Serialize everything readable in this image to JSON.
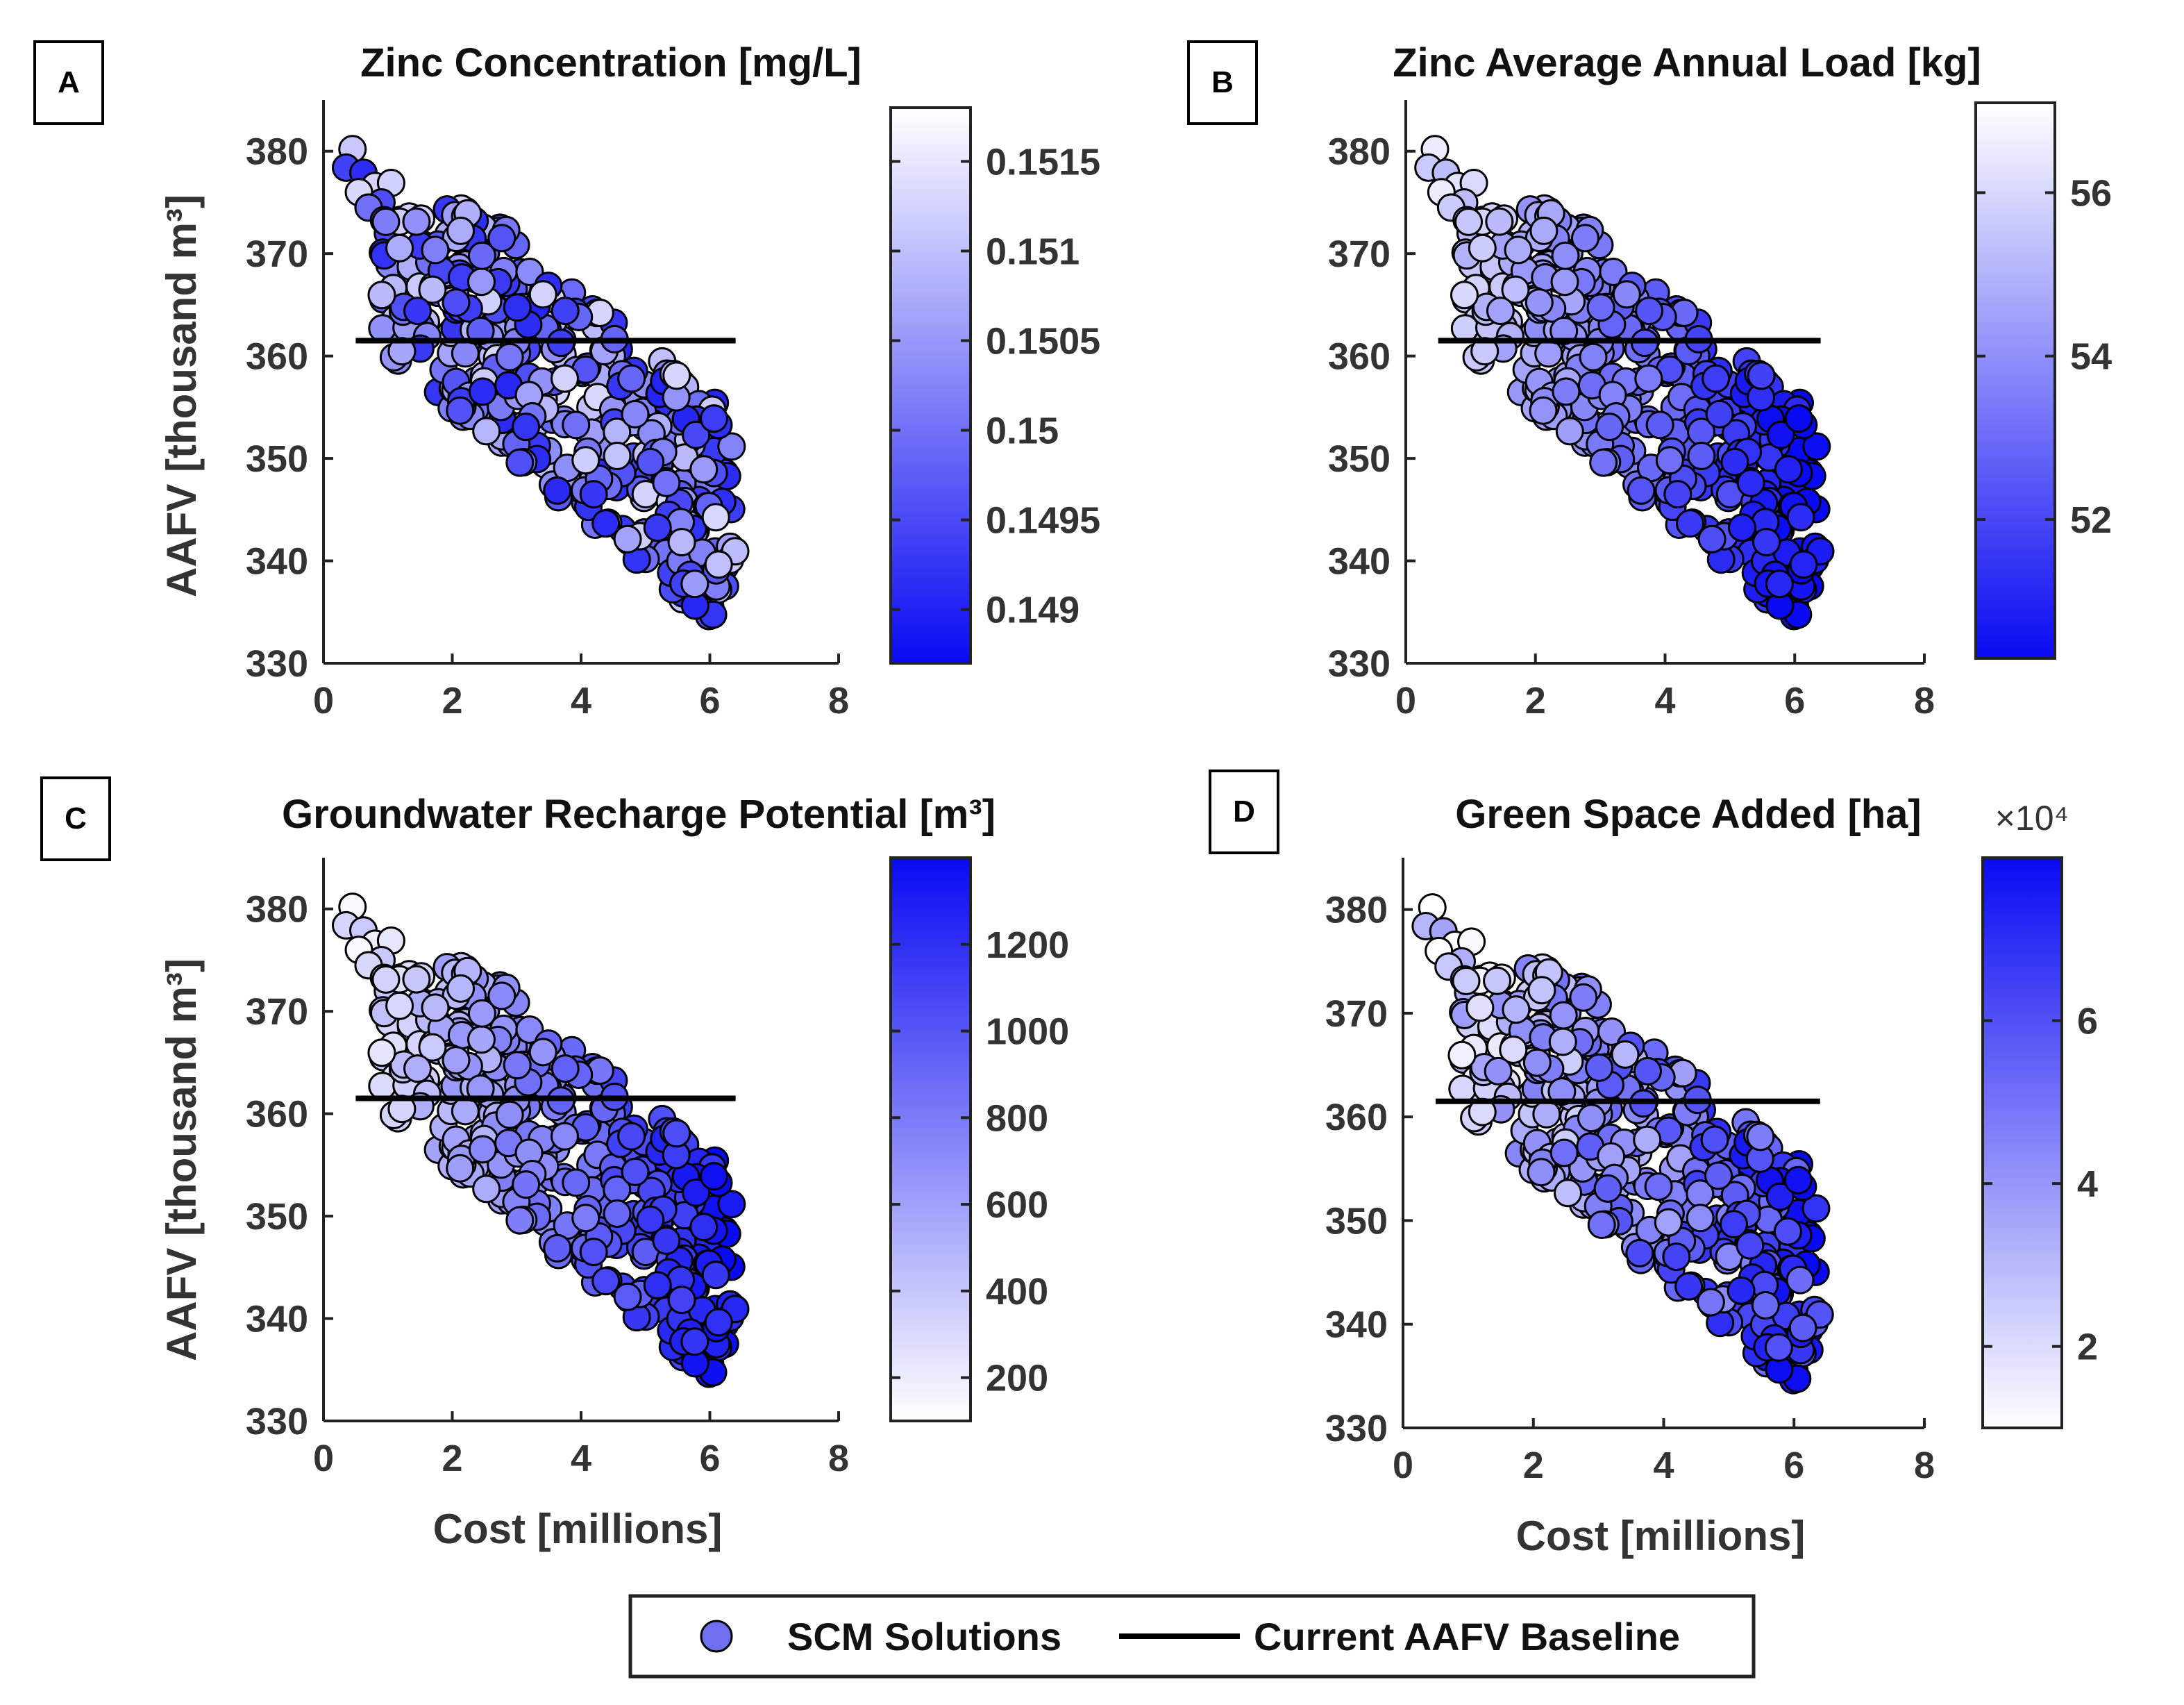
{
  "chart_data": [
    {
      "panel": "A",
      "type": "scatter",
      "title": "Zinc Concentration [mg/L]",
      "xlabel": "",
      "ylabel": "AAFV [thousand m³]",
      "xlim": [
        0,
        8
      ],
      "ylim": [
        330,
        385
      ],
      "xticks": [
        "0",
        "2",
        "4",
        "6",
        "8"
      ],
      "yticks": [
        "330",
        "340",
        "350",
        "360",
        "370",
        "380"
      ],
      "baseline": {
        "x": [
          0.5,
          6.4
        ],
        "y": 361.5
      },
      "colorbar": {
        "range": [
          0.1487,
          0.1518
        ],
        "ticks": [
          "0.149",
          "0.1495",
          "0.15",
          "0.1505",
          "0.151",
          "0.1515"
        ],
        "tick_values": [
          0.149,
          0.1495,
          0.15,
          0.1505,
          0.151,
          0.1515
        ],
        "low_color": "#0a0af2",
        "high_color": "#ffffff",
        "multiplier": ""
      }
    },
    {
      "panel": "B",
      "type": "scatter",
      "title": "Zinc Average Annual Load [kg]",
      "xlabel": "",
      "ylabel": "",
      "xlim": [
        0,
        8
      ],
      "ylim": [
        330,
        385
      ],
      "xticks": [
        "0",
        "2",
        "4",
        "6",
        "8"
      ],
      "yticks": [
        "330",
        "340",
        "350",
        "360",
        "370",
        "380"
      ],
      "baseline": {
        "x": [
          0.5,
          6.4
        ],
        "y": 361.5
      },
      "colorbar": {
        "range": [
          50.3,
          57.1
        ],
        "ticks": [
          "52",
          "54",
          "56"
        ],
        "tick_values": [
          52,
          54,
          56
        ],
        "low_color": "#0a0af2",
        "high_color": "#ffffff",
        "multiplier": ""
      }
    },
    {
      "panel": "C",
      "type": "scatter",
      "title": "Groundwater Recharge Potential [m³]",
      "xlabel": "Cost [millions]",
      "ylabel": "AAFV [thousand m³]",
      "xlim": [
        0,
        8
      ],
      "ylim": [
        330,
        385
      ],
      "xticks": [
        "0",
        "2",
        "4",
        "6",
        "8"
      ],
      "yticks": [
        "330",
        "340",
        "350",
        "360",
        "370",
        "380"
      ],
      "baseline": {
        "x": [
          0.5,
          6.4
        ],
        "y": 361.5
      },
      "colorbar": {
        "range": [
          100,
          1400
        ],
        "ticks": [
          "200",
          "400",
          "600",
          "800",
          "1000",
          "1200"
        ],
        "tick_values": [
          200,
          400,
          600,
          800,
          1000,
          1200
        ],
        "low_color": "#ffffff",
        "high_color": "#0a0af2",
        "multiplier": ""
      }
    },
    {
      "panel": "D",
      "type": "scatter",
      "title": "Green Space Added [ha]",
      "xlabel": "Cost [millions]",
      "ylabel": "",
      "xlim": [
        0,
        8
      ],
      "ylim": [
        330,
        385
      ],
      "xticks": [
        "0",
        "2",
        "4",
        "6",
        "8"
      ],
      "yticks": [
        "330",
        "340",
        "350",
        "360",
        "370",
        "380"
      ],
      "baseline": {
        "x": [
          0.5,
          6.4
        ],
        "y": 361.5
      },
      "colorbar": {
        "range": [
          1,
          8
        ],
        "ticks": [
          "2",
          "4",
          "6"
        ],
        "tick_values": [
          2,
          4,
          6
        ],
        "low_color": "#ffffff",
        "high_color": "#0a0af2",
        "multiplier": "×10⁴"
      }
    }
  ],
  "legend": {
    "scatter_label": "SCM Solutions",
    "line_label": "Current AAFV Baseline",
    "marker_color": "#6f6ff0"
  }
}
